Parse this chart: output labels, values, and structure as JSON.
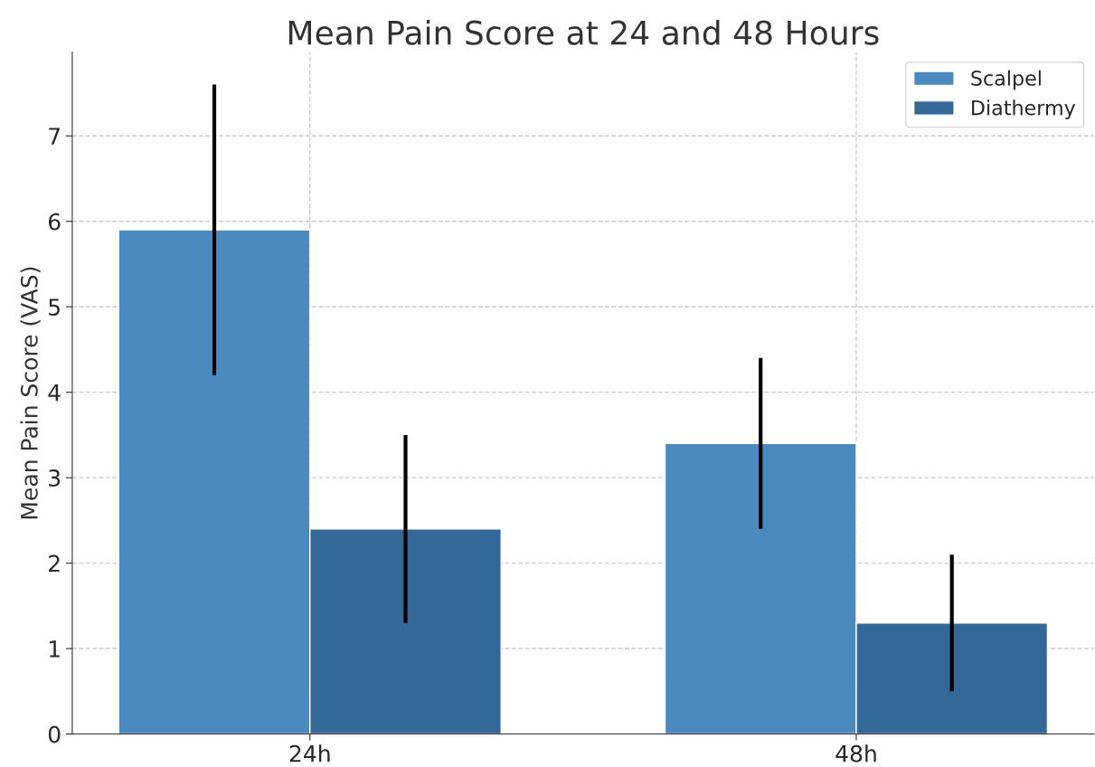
{
  "chart_data": {
    "type": "bar",
    "title": "Mean Pain Score at 24 and 48 Hours",
    "ylabel": "Mean Pain Score (VAS)",
    "categories": [
      "24h",
      "48h"
    ],
    "series": [
      {
        "name": "Scalpel",
        "color": "#4a8abe",
        "values": [
          5.9,
          3.4
        ],
        "errors": [
          1.7,
          1.0
        ]
      },
      {
        "name": "Diathermy",
        "color": "#336899",
        "values": [
          2.4,
          1.3
        ],
        "errors": [
          1.1,
          0.8
        ]
      }
    ],
    "ylim": [
      0,
      7.98
    ],
    "yticks": [
      0,
      1,
      2,
      3,
      4,
      5,
      6,
      7
    ],
    "grid": true,
    "legend": "top right"
  }
}
